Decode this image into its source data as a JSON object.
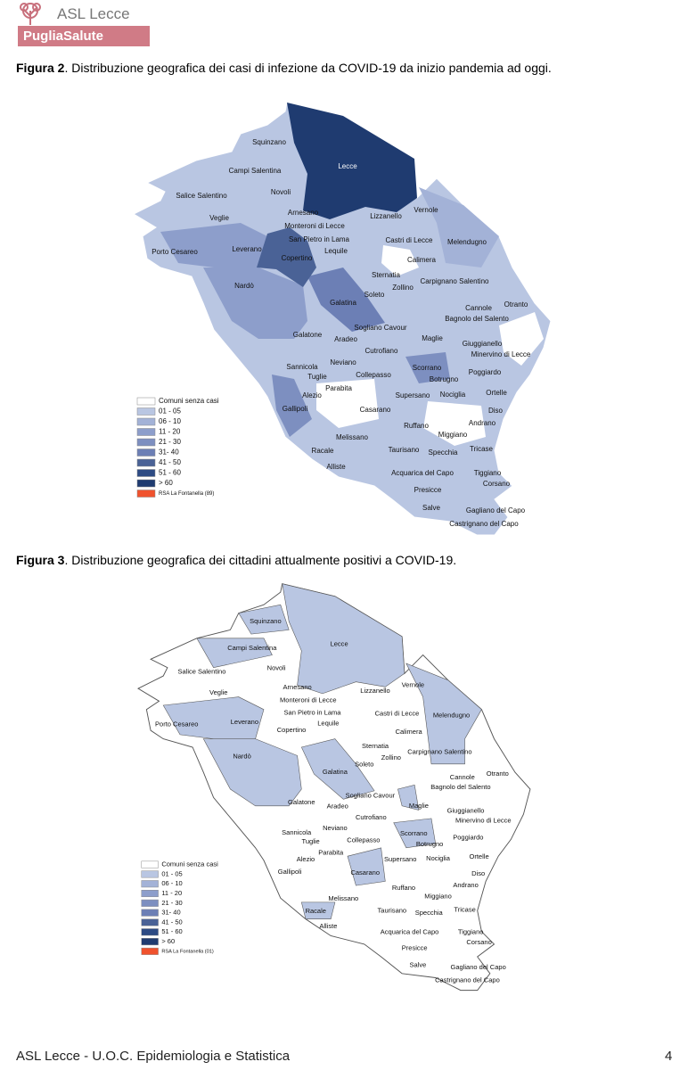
{
  "header": {
    "logo_name": "ASL Lecce",
    "logo_bar": "PugliaSalute"
  },
  "figure_2": {
    "label": "Figura 2",
    "caption": ". Distribuzione  geografica dei  casi di infezione  da  COVID-19 da inizio pandemia ad oggi.",
    "towns": [
      "Squinzano",
      "Campi Salentina",
      "Lecce",
      "Salice Salentino",
      "Novoli",
      "Veglie",
      "Arnesano",
      "Lizzanello",
      "Vernole",
      "Monteroni di Lecce",
      "San Pietro in Lama",
      "Castri di Lecce",
      "Melendugno",
      "Porto Cesareo",
      "Leverano",
      "Lequile",
      "Calimera",
      "Copertino",
      "Sternatia",
      "Zollino",
      "Carpignano Salentino",
      "Nardò",
      "Soleto",
      "Galatina",
      "Cannole",
      "Otranto",
      "Bagnolo del Salento",
      "Sogliano Cavour",
      "Galatone",
      "Aradeo",
      "Maglie",
      "Giuggianello",
      "Minervino di Lecce",
      "Cutrofiano",
      "Neviano",
      "Sannicola",
      "Poggiardo",
      "Scorrano",
      "Tuglie",
      "Collepasso",
      "Botrugno",
      "Parabita",
      "Ortelle",
      "Alezio",
      "Supersano",
      "Nociglia",
      "Gallipoli",
      "Casarano",
      "Diso",
      "Andrano",
      "Ruffano",
      "Miggiano",
      "Melissano",
      "Racale",
      "Taurisano",
      "Specchia",
      "Tricase",
      "Alliste",
      "Acquarica del Capo",
      "Tiggiano",
      "Corsano",
      "Presicce",
      "Salve",
      "Gagliano del Capo",
      "Castrignano del Capo"
    ],
    "legend": [
      "Comuni senza casi",
      "01 - 05",
      "06 - 10",
      "11 - 20",
      "21 - 30",
      "31- 40",
      "41 - 50",
      "51 - 60",
      "> 60",
      "RSA La Fontanella (89)"
    ]
  },
  "figure_3": {
    "label": "Figura 3",
    "caption": ". Distribuzione  geografica dei cittadini attualmente positivi a COVID-19.",
    "towns": [
      "Squinzano",
      "Campi Salentina",
      "Lecce",
      "Salice Salentino",
      "Novoli",
      "Veglie",
      "Arnesano",
      "Lizzanello",
      "Vernole",
      "Monteroni di Lecce",
      "San Pietro in Lama",
      "Castri di Lecce",
      "Melendugno",
      "Porto Cesareo",
      "Leverano",
      "Lequile",
      "Calimera",
      "Copertino",
      "Sternatia",
      "Zollino",
      "Carpignano Salentino",
      "Nardò",
      "Soleto",
      "Galatina",
      "Cannole",
      "Otranto",
      "Bagnolo del Salento",
      "Sogliano Cavour",
      "Galatone",
      "Aradeo",
      "Maglie",
      "Giuggianello",
      "Minervino di Lecce",
      "Cutrofiano",
      "Neviano",
      "Sannicola",
      "Poggiardo",
      "Scorrano",
      "Tuglie",
      "Collepasso",
      "Botrugno",
      "Parabita",
      "Ortelle",
      "Alezio",
      "Supersano",
      "Nociglia",
      "Gallipoli",
      "Casarano",
      "Diso",
      "Andrano",
      "Ruffano",
      "Miggiano",
      "Melissano",
      "Racale",
      "Taurisano",
      "Specchia",
      "Tricase",
      "Alliste",
      "Acquarica del Capo",
      "Tiggiano",
      "Corsano",
      "Presicce",
      "Salve",
      "Gagliano del Capo",
      "Castrignano del Capo"
    ],
    "legend": [
      "Comuni senza casi",
      "01 - 05",
      "06 - 10",
      "11 - 20",
      "21 - 30",
      "31- 40",
      "41 - 50",
      "51 - 60",
      "> 60",
      "RSA La Fontanella (01)"
    ]
  },
  "legend_colors": [
    "#ffffff",
    "#b9c6e2",
    "#a3b2d7",
    "#8d9ecb",
    "#7d8fc0",
    "#6c7fb5",
    "#4a6296",
    "#2d4b84",
    "#1f3b70",
    "#f0522d"
  ],
  "footer": {
    "text": "ASL Lecce - U.O.C. Epidemiologia e Statistica",
    "page": "4"
  }
}
